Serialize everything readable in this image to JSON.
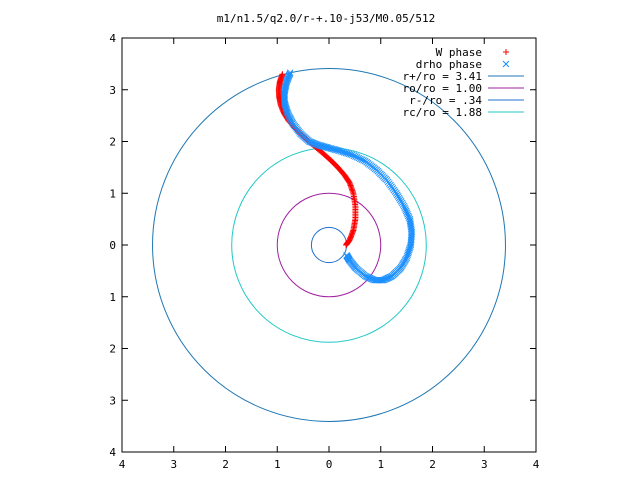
{
  "chart_data": {
    "type": "scatter",
    "title": "m1/n1.5/q2.0/r-+.10-j53/M0.05/512",
    "xlabel": "",
    "ylabel": "",
    "xlim": [
      -4,
      4
    ],
    "ylim": [
      -4,
      4
    ],
    "x_ticks": [
      -4,
      -3,
      -2,
      -1,
      0,
      1,
      2,
      3,
      4
    ],
    "y_ticks": [
      -4,
      -3,
      -2,
      -1,
      0,
      1,
      2,
      3,
      4
    ],
    "x_tick_labels": [
      "4",
      "3",
      "2",
      "1",
      "0",
      "1",
      "2",
      "3",
      "4"
    ],
    "y_tick_labels": [
      "4",
      "3",
      "2",
      "1",
      "0",
      "1",
      "2",
      "3",
      "4"
    ],
    "grid": false,
    "legend_position": "top-right",
    "series": [
      {
        "name": "W phase",
        "marker": "+",
        "color": "#ff0000",
        "x": [
          -0.9,
          -0.95,
          -0.97,
          -0.96,
          -0.93,
          -0.87,
          -0.78,
          -0.65,
          -0.5,
          -0.33,
          -0.15,
          0.02,
          0.17,
          0.3,
          0.4,
          0.47,
          0.51,
          0.51,
          0.47,
          0.4,
          0.33
        ],
        "y": [
          3.3,
          3.15,
          3.0,
          2.85,
          2.7,
          2.55,
          2.4,
          2.25,
          2.1,
          1.95,
          1.8,
          1.65,
          1.5,
          1.35,
          1.2,
          1.0,
          0.75,
          0.5,
          0.28,
          0.1,
          0.0
        ]
      },
      {
        "name": "drho phase",
        "marker": "x",
        "color": "#1e90ff",
        "x": [
          -0.75,
          -0.82,
          -0.86,
          -0.86,
          -0.8,
          -0.7,
          -0.55,
          -0.38,
          -0.2,
          -0.02,
          0.2,
          0.45,
          0.7,
          0.92,
          1.12,
          1.3,
          1.45,
          1.56,
          1.6,
          1.58,
          1.5,
          1.38,
          1.22,
          1.05,
          0.88,
          0.7,
          0.52,
          0.4,
          0.34
        ],
        "y": [
          3.33,
          3.15,
          2.95,
          2.75,
          2.55,
          2.35,
          2.15,
          2.0,
          1.93,
          1.88,
          1.82,
          1.74,
          1.62,
          1.45,
          1.25,
          1.0,
          0.75,
          0.5,
          0.25,
          0.0,
          -0.25,
          -0.45,
          -0.6,
          -0.68,
          -0.68,
          -0.6,
          -0.45,
          -0.3,
          -0.2
        ]
      },
      {
        "name": "r+/ro = 3.41",
        "type": "circle",
        "radius": 3.41,
        "color": "#1f77b4"
      },
      {
        "name": "ro/ro = 1.00",
        "type": "circle",
        "radius": 1.0,
        "color": "#a020a0"
      },
      {
        "name": "r-/ro = .34",
        "type": "circle",
        "radius": 0.34,
        "color": "#1f6fd0"
      },
      {
        "name": "rc/ro = 1.88",
        "type": "circle",
        "radius": 1.88,
        "color": "#20c8c8"
      }
    ]
  }
}
